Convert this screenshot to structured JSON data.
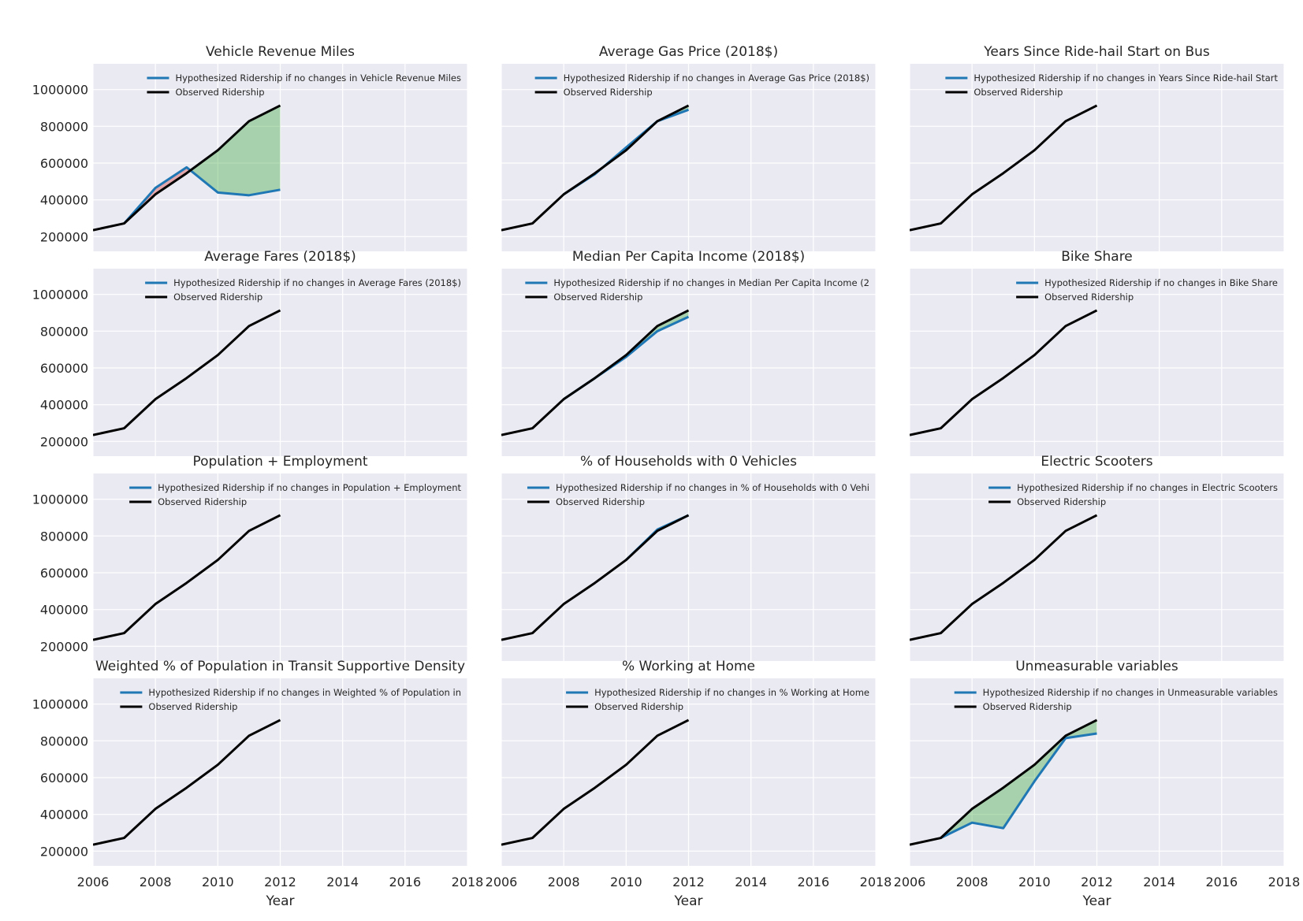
{
  "chart_data": {
    "type": "line",
    "xlabel": "Year",
    "xlim": [
      2006,
      2018
    ],
    "ylim": [
      120000,
      1140000
    ],
    "xticks": [
      "2006",
      "2008",
      "2010",
      "2012",
      "2014",
      "2016",
      "2018"
    ],
    "yticks": [
      "200000",
      "400000",
      "600000",
      "800000",
      "1000000"
    ],
    "colors": {
      "hypothesized": "#1f77b4",
      "observed": "#000000",
      "fill_below": "#2ca02c",
      "fill_above": "#d62728",
      "panel_bg": "#eaeaf2"
    },
    "observed": {
      "x": [
        2006,
        2007,
        2008,
        2009,
        2010,
        2011,
        2012
      ],
      "y": [
        235000,
        272000,
        430000,
        545000,
        670000,
        828000,
        913000
      ]
    },
    "panels": [
      {
        "title": "Vehicle Revenue Miles",
        "legend": [
          "Hypothesized Ridership if no changes in Vehicle Revenue Miles",
          "Observed Ridership"
        ],
        "hyp_x": [
          2007,
          2008,
          2009,
          2010,
          2011,
          2012
        ],
        "hyp_y": [
          272000,
          465000,
          577000,
          440000,
          425000,
          455000
        ]
      },
      {
        "title": "Average Gas Price (2018$)",
        "legend": [
          "Hypothesized Ridership if no changes in Average Gas Price (2018$)",
          "Observed Ridership"
        ],
        "hyp_x": [
          2008,
          2009,
          2010,
          2011,
          2012
        ],
        "hyp_y": [
          430000,
          540000,
          685000,
          828000,
          890000
        ]
      },
      {
        "title": "Years Since Ride-hail Start on Bus",
        "legend": [
          "Hypothesized Ridership if no changes in Years Since Ride-hail Start",
          "Observed Ridership"
        ],
        "hyp_x": [],
        "hyp_y": []
      },
      {
        "title": "Average Fares (2018$)",
        "legend": [
          "Hypothesized Ridership if no changes in Average Fares (2018$)",
          "Observed Ridership"
        ],
        "hyp_x": [],
        "hyp_y": []
      },
      {
        "title": "Median Per Capita Income (2018$)",
        "legend": [
          "Hypothesized Ridership if no changes in Median Per Capita Income (2",
          "Observed Ridership"
        ],
        "hyp_x": [
          2008,
          2009,
          2010,
          2011,
          2012
        ],
        "hyp_y": [
          430000,
          545000,
          660000,
          800000,
          878000
        ]
      },
      {
        "title": "Bike Share",
        "legend": [
          "Hypothesized Ridership if no changes in Bike Share",
          "Observed Ridership"
        ],
        "hyp_x": [],
        "hyp_y": []
      },
      {
        "title": "Population + Employment",
        "legend": [
          "Hypothesized Ridership if no changes in Population + Employment",
          "Observed Ridership"
        ],
        "hyp_x": [],
        "hyp_y": []
      },
      {
        "title": "% of Households with 0 Vehicles",
        "legend": [
          "Hypothesized Ridership if no changes in % of Households with 0 Vehi",
          "Observed Ridership"
        ],
        "hyp_x": [
          2010,
          2011,
          2012
        ],
        "hyp_y": [
          670000,
          835000,
          913000
        ]
      },
      {
        "title": "Electric Scooters",
        "legend": [
          "Hypothesized Ridership if no changes in Electric Scooters",
          "Observed Ridership"
        ],
        "hyp_x": [],
        "hyp_y": []
      },
      {
        "title": "Weighted % of Population in Transit Supportive Density",
        "legend": [
          "Hypothesized Ridership if no changes in Weighted % of Population in",
          "Observed Ridership"
        ],
        "hyp_x": [],
        "hyp_y": []
      },
      {
        "title": "% Working at Home",
        "legend": [
          "Hypothesized Ridership if no changes in % Working at Home",
          "Observed Ridership"
        ],
        "hyp_x": [],
        "hyp_y": []
      },
      {
        "title": "Unmeasurable variables",
        "legend": [
          "Hypothesized Ridership if no changes in Unmeasurable variables",
          "Observed Ridership"
        ],
        "hyp_x": [
          2007,
          2008,
          2009,
          2010,
          2011,
          2012
        ],
        "hyp_y": [
          272000,
          355000,
          325000,
          580000,
          815000,
          840000
        ]
      }
    ]
  }
}
